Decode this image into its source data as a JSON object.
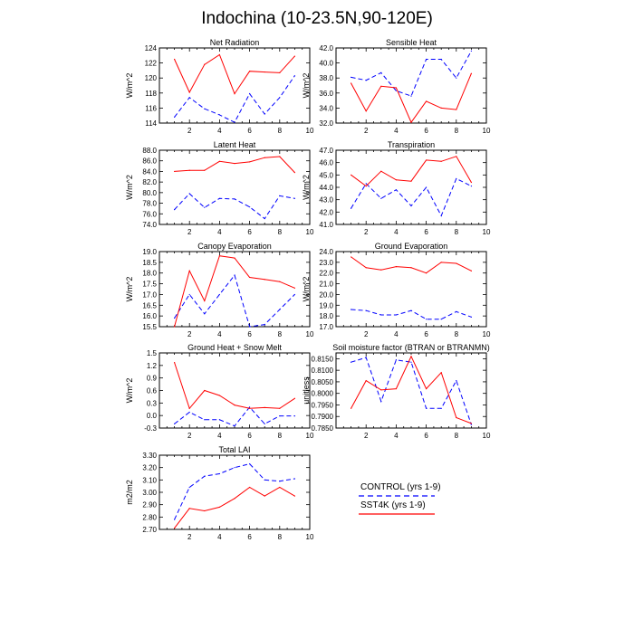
{
  "page_title": "Indochina (10-23.5N,90-120E)",
  "legend": {
    "control_label": "CONTROL (yrs 1-9)",
    "sst4k_label": "SST4K (yrs 1-9)",
    "control_color": "#0000ff",
    "sst4k_color": "#ff0000"
  },
  "chart_data": [
    {
      "type": "line",
      "title": "Net Radiation",
      "ylabel": "W/m^2",
      "xlim": [
        0,
        10
      ],
      "ylim": [
        114,
        124
      ],
      "xticks": [
        2,
        4,
        6,
        8,
        10
      ],
      "yticks": [
        "114",
        "116",
        "118",
        "120",
        "122",
        "124"
      ],
      "x": [
        1,
        2,
        3,
        4,
        5,
        6,
        7,
        8,
        9
      ],
      "series": [
        {
          "name": "CONTROL (yrs 1-9)",
          "values": [
            114.8,
            117.4,
            115.9,
            115.1,
            114.1,
            117.9,
            115.2,
            117.4,
            120.3
          ]
        },
        {
          "name": "SST4K (yrs 1-9)",
          "values": [
            122.5,
            118.1,
            121.8,
            123.1,
            117.9,
            120.9,
            120.8,
            120.7,
            122.9
          ]
        }
      ]
    },
    {
      "type": "line",
      "title": "Sensible Heat",
      "ylabel": "W/m^2",
      "xlim": [
        0,
        10
      ],
      "ylim": [
        32,
        42
      ],
      "xticks": [
        2,
        4,
        6,
        8,
        10
      ],
      "yticks": [
        "32.0",
        "34.0",
        "36.0",
        "38.0",
        "40.0",
        "42.0"
      ],
      "x": [
        1,
        2,
        3,
        4,
        5,
        6,
        7,
        8,
        9
      ],
      "series": [
        {
          "name": "CONTROL (yrs 1-9)",
          "values": [
            38.1,
            37.7,
            38.7,
            36.3,
            35.6,
            40.5,
            40.5,
            38.0,
            41.6
          ]
        },
        {
          "name": "SST4K (yrs 1-9)",
          "values": [
            37.3,
            33.6,
            36.9,
            36.7,
            32.1,
            34.9,
            34.0,
            33.8,
            38.6
          ]
        }
      ]
    },
    {
      "type": "line",
      "title": "Latent Heat",
      "ylabel": "W/m^2",
      "xlim": [
        0,
        10
      ],
      "ylim": [
        74,
        88
      ],
      "xticks": [
        2,
        4,
        6,
        8,
        10
      ],
      "yticks": [
        "74.0",
        "76.0",
        "78.0",
        "80.0",
        "82.0",
        "84.0",
        "86.0",
        "88.0"
      ],
      "x": [
        1,
        2,
        3,
        4,
        5,
        6,
        7,
        8,
        9
      ],
      "series": [
        {
          "name": "CONTROL (yrs 1-9)",
          "values": [
            76.8,
            79.8,
            77.2,
            78.9,
            78.8,
            77.3,
            75.1,
            79.4,
            78.9
          ]
        },
        {
          "name": "SST4K (yrs 1-9)",
          "values": [
            84.0,
            84.2,
            84.2,
            85.9,
            85.5,
            85.8,
            86.6,
            86.8,
            83.8
          ]
        }
      ]
    },
    {
      "type": "line",
      "title": "Transpiration",
      "ylabel": "W/m^2",
      "xlim": [
        0,
        10
      ],
      "ylim": [
        41,
        47
      ],
      "xticks": [
        2,
        4,
        6,
        8,
        10
      ],
      "yticks": [
        "41.0",
        "42.0",
        "43.0",
        "44.0",
        "45.0",
        "46.0",
        "47.0"
      ],
      "x": [
        1,
        2,
        3,
        4,
        5,
        6,
        7,
        8,
        9
      ],
      "series": [
        {
          "name": "CONTROL (yrs 1-9)",
          "values": [
            42.3,
            44.3,
            43.1,
            43.8,
            42.5,
            44.0,
            41.7,
            44.7,
            44.1
          ]
        },
        {
          "name": "SST4K (yrs 1-9)",
          "values": [
            45.0,
            44.1,
            45.3,
            44.6,
            44.5,
            46.2,
            46.1,
            46.5,
            44.4
          ]
        }
      ]
    },
    {
      "type": "line",
      "title": "Canopy Evaporation",
      "ylabel": "W/m^2",
      "xlim": [
        0,
        10
      ],
      "ylim": [
        15.5,
        19.0
      ],
      "xticks": [
        2,
        4,
        6,
        8,
        10
      ],
      "yticks": [
        "15.5",
        "16.0",
        "16.5",
        "17.0",
        "17.5",
        "18.0",
        "18.5",
        "19.0"
      ],
      "x": [
        1,
        2,
        3,
        4,
        5,
        6,
        7,
        8,
        9
      ],
      "series": [
        {
          "name": "CONTROL (yrs 1-9)",
          "values": [
            15.9,
            17.0,
            16.1,
            17.0,
            17.9,
            15.5,
            15.6,
            16.3,
            17.0
          ]
        },
        {
          "name": "SST4K (yrs 1-9)",
          "values": [
            15.5,
            18.1,
            16.7,
            18.8,
            18.7,
            17.8,
            17.7,
            17.6,
            17.3
          ]
        }
      ]
    },
    {
      "type": "line",
      "title": "Ground Evaporation",
      "ylabel": "W/m^2",
      "xlim": [
        0,
        10
      ],
      "ylim": [
        17,
        24
      ],
      "xticks": [
        2,
        4,
        6,
        8,
        10
      ],
      "yticks": [
        "17.0",
        "18.0",
        "19.0",
        "20.0",
        "21.0",
        "22.0",
        "23.0",
        "24.0"
      ],
      "x": [
        1,
        2,
        3,
        4,
        5,
        6,
        7,
        8,
        9
      ],
      "series": [
        {
          "name": "CONTROL (yrs 1-9)",
          "values": [
            18.6,
            18.5,
            18.1,
            18.1,
            18.5,
            17.7,
            17.7,
            18.4,
            17.9
          ]
        },
        {
          "name": "SST4K (yrs 1-9)",
          "values": [
            23.5,
            22.5,
            22.3,
            22.6,
            22.5,
            22.0,
            23.0,
            22.9,
            22.2
          ]
        }
      ]
    },
    {
      "type": "line",
      "title": "Ground Heat + Snow Melt",
      "ylabel": "W/m^2",
      "xlim": [
        0,
        10
      ],
      "ylim": [
        -0.3,
        1.5
      ],
      "xticks": [
        2,
        4,
        6,
        8,
        10
      ],
      "yticks": [
        "-0.3",
        "0.0",
        "0.3",
        "0.6",
        "0.9",
        "1.2",
        "1.5"
      ],
      "x": [
        1,
        2,
        3,
        4,
        5,
        6,
        7,
        8,
        9
      ],
      "series": [
        {
          "name": "CONTROL (yrs 1-9)",
          "values": [
            -0.2,
            0.08,
            -0.1,
            -0.1,
            -0.25,
            0.2,
            -0.2,
            -0.01,
            -0.01
          ]
        },
        {
          "name": "SST4K (yrs 1-9)",
          "values": [
            1.27,
            0.17,
            0.6,
            0.48,
            0.25,
            0.17,
            0.19,
            0.17,
            0.41
          ]
        }
      ]
    },
    {
      "type": "line",
      "title": "Soil moisture factor (BTRAN or BTRANMN)",
      "ylabel": "unitless",
      "xlim": [
        0,
        10
      ],
      "ylim": [
        0.785,
        0.8175
      ],
      "xticks": [
        2,
        4,
        6,
        8,
        10
      ],
      "yticks": [
        "0.7850",
        "0.7900",
        "0.7950",
        "0.8000",
        "0.8050",
        "0.8100",
        "0.8150"
      ],
      "x": [
        1,
        2,
        3,
        4,
        5,
        6,
        7,
        8,
        9
      ],
      "series": [
        {
          "name": "CONTROL (yrs 1-9)",
          "values": [
            0.8135,
            0.8155,
            0.7965,
            0.8145,
            0.8135,
            0.7935,
            0.7935,
            0.8055,
            0.7865
          ]
        },
        {
          "name": "SST4K (yrs 1-9)",
          "values": [
            0.7935,
            0.8055,
            0.8015,
            0.802,
            0.816,
            0.802,
            0.809,
            0.7895,
            0.787
          ]
        }
      ]
    },
    {
      "type": "line",
      "title": "Total LAI",
      "ylabel": "m2/m2",
      "xlim": [
        0,
        10
      ],
      "ylim": [
        2.7,
        3.3
      ],
      "xticks": [
        2,
        4,
        6,
        8,
        10
      ],
      "yticks": [
        "2.70",
        "2.80",
        "2.90",
        "3.00",
        "3.10",
        "3.20",
        "3.30"
      ],
      "x": [
        1,
        2,
        3,
        4,
        5,
        6,
        7,
        8,
        9
      ],
      "series": [
        {
          "name": "CONTROL (yrs 1-9)",
          "values": [
            2.78,
            3.04,
            3.13,
            3.15,
            3.2,
            3.23,
            3.1,
            3.09,
            3.11
          ]
        },
        {
          "name": "SST4K (yrs 1-9)",
          "values": [
            2.71,
            2.87,
            2.85,
            2.88,
            2.95,
            3.04,
            2.97,
            3.04,
            2.97
          ]
        }
      ]
    }
  ]
}
